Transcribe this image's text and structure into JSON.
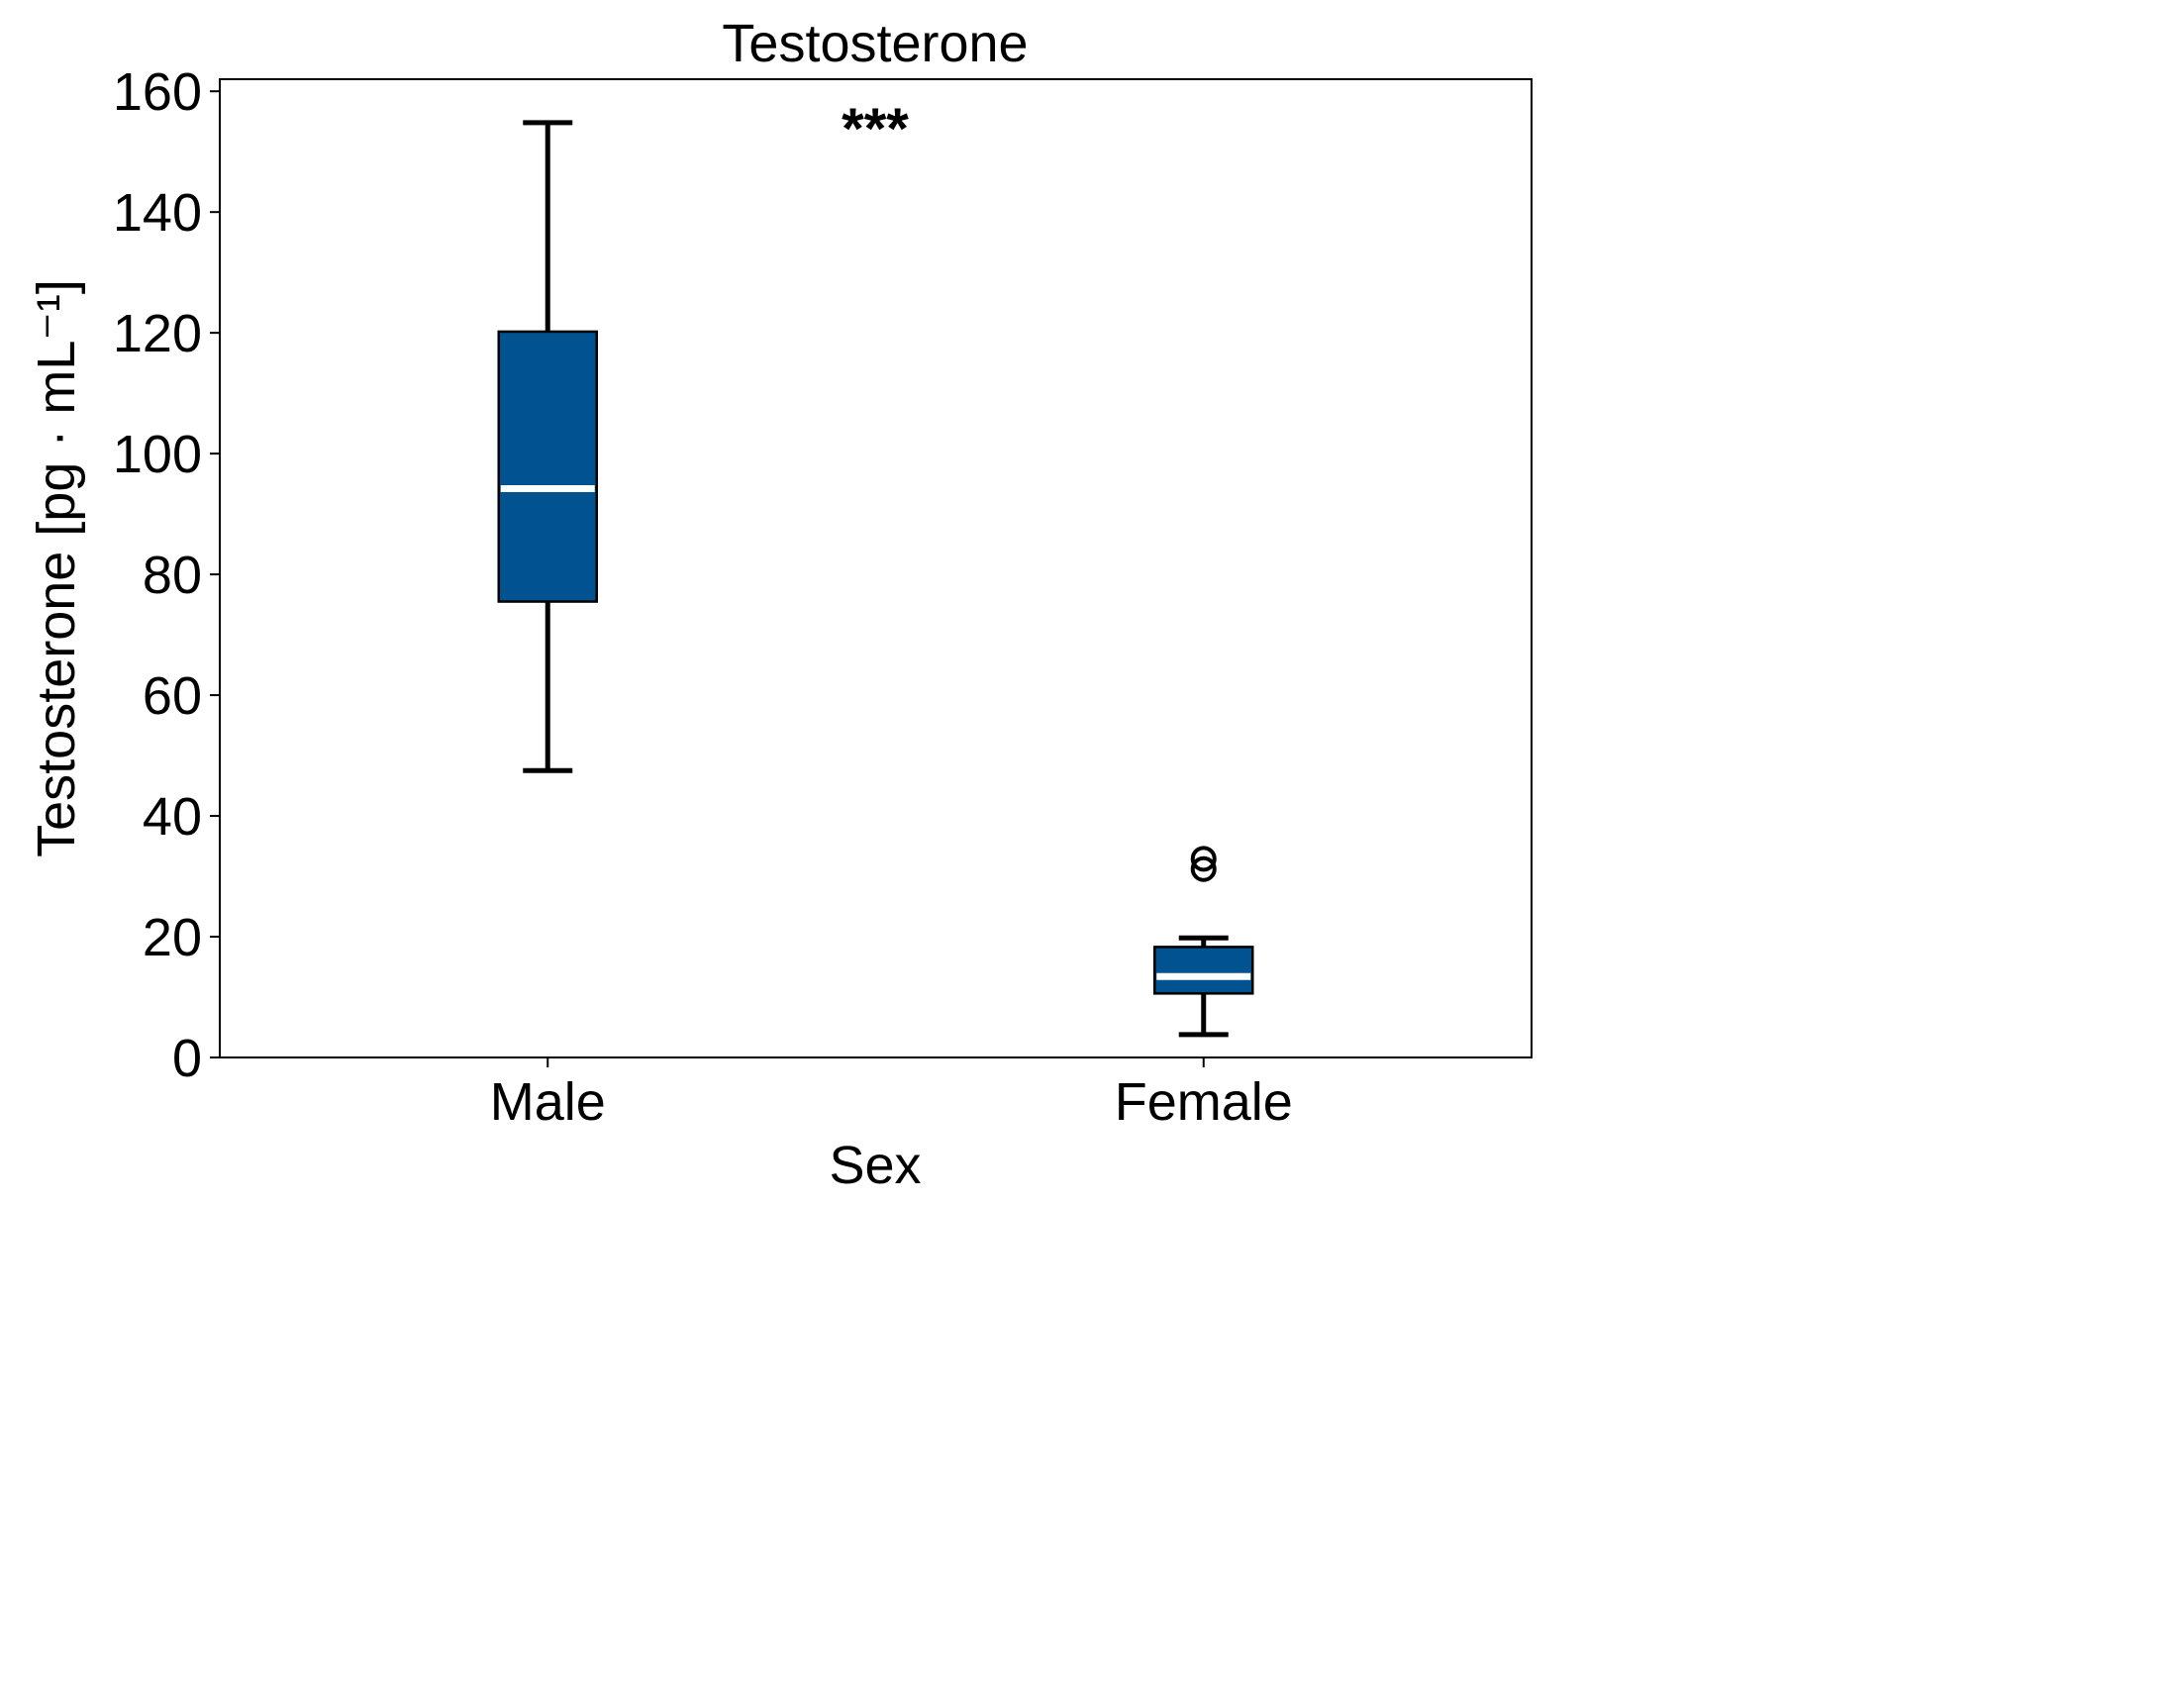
{
  "chart_data": {
    "type": "box",
    "title": "Testosterone",
    "xlabel": "Sex",
    "ylabel": "Testosterone [pg · mL⁻¹]",
    "ylim": [
      0,
      162
    ],
    "yticks": [
      0,
      20,
      40,
      60,
      80,
      100,
      120,
      140,
      160
    ],
    "grid": false,
    "annotation": "***",
    "box_color": "#005291",
    "median_color": "#ffffff",
    "categories": [
      "Male",
      "Female"
    ],
    "boxes": [
      {
        "category": "Male",
        "whisker_low": 47.5,
        "q1": 75.5,
        "median": 94.2,
        "q3": 120.2,
        "whisker_high": 154.8,
        "outliers": []
      },
      {
        "category": "Female",
        "whisker_low": 3.8,
        "q1": 10.6,
        "median": 13.4,
        "q3": 18.3,
        "whisker_high": 19.8,
        "outliers": [
          31.2,
          32.9
        ]
      }
    ]
  }
}
